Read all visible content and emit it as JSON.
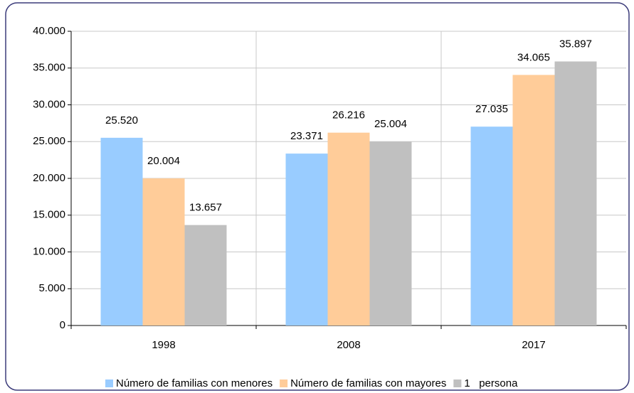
{
  "chart_data": {
    "type": "bar",
    "categories": [
      "1998",
      "2008",
      "2017"
    ],
    "series": [
      {
        "name": "Número de familias con menores",
        "color": "#99ccff",
        "values": [
          25520,
          23371,
          27035
        ],
        "value_labels": [
          "25.520",
          "23.371",
          "27.035"
        ]
      },
      {
        "name": "Número de familias con mayores",
        "color": "#ffcc99",
        "values": [
          20004,
          26216,
          34065
        ],
        "value_labels": [
          "20.004",
          "26.216",
          "34.065"
        ]
      },
      {
        "name": "1   persona",
        "color": "#c0c0c0",
        "values": [
          13657,
          25004,
          35897
        ],
        "value_labels": [
          "13.657",
          "25.004",
          "35.897"
        ]
      }
    ],
    "ylim": [
      0,
      40000
    ],
    "yticks": [
      0,
      {
        "value": 5000,
        "label": "5.000"
      },
      {
        "value": 10000,
        "label": "10.000"
      },
      {
        "value": 15000,
        "label": "15.000"
      },
      {
        "value": 20000,
        "label": "20.000"
      },
      {
        "value": 25000,
        "label": "25.000"
      },
      {
        "value": 30000,
        "label": "30.000"
      },
      {
        "value": 35000,
        "label": "35.000"
      },
      {
        "value": 40000,
        "label": "40.000"
      }
    ],
    "grid": true,
    "legend": "bottom"
  }
}
